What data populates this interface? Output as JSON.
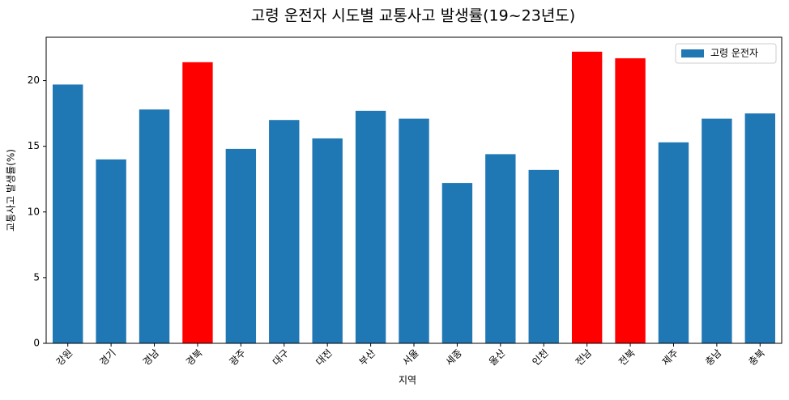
{
  "chart_data": {
    "type": "bar",
    "title": "고령 운전자 시도별 교통사고 발생률(19~23년도)",
    "x_label": "지역",
    "y_label": "교통사고 발생률(%)",
    "categories": [
      "강원",
      "경기",
      "경남",
      "경북",
      "광주",
      "대구",
      "대전",
      "부산",
      "서울",
      "세종",
      "울산",
      "인천",
      "전남",
      "전북",
      "제주",
      "충남",
      "충북"
    ],
    "series": [
      {
        "name": "고령 운전자",
        "color": "#1f77b4",
        "values": [
          19.7,
          14.0,
          17.8,
          21.4,
          14.8,
          17.0,
          15.6,
          17.7,
          17.1,
          12.2,
          14.4,
          13.2,
          22.2,
          21.7,
          15.3,
          17.1,
          17.5
        ],
        "colors": [
          "#1f77b4",
          "#1f77b4",
          "#1f77b4",
          "#ff0000",
          "#1f77b4",
          "#1f77b4",
          "#1f77b4",
          "#1f77b4",
          "#1f77b4",
          "#1f77b4",
          "#1f77b4",
          "#1f77b4",
          "#ff0000",
          "#ff0000",
          "#1f77b4",
          "#1f77b4",
          "#1f77b4"
        ]
      }
    ],
    "ylim": [
      0,
      23.3
    ],
    "yticks": [
      0,
      5,
      10,
      15,
      20
    ],
    "grid": false,
    "legend": "upper right"
  }
}
